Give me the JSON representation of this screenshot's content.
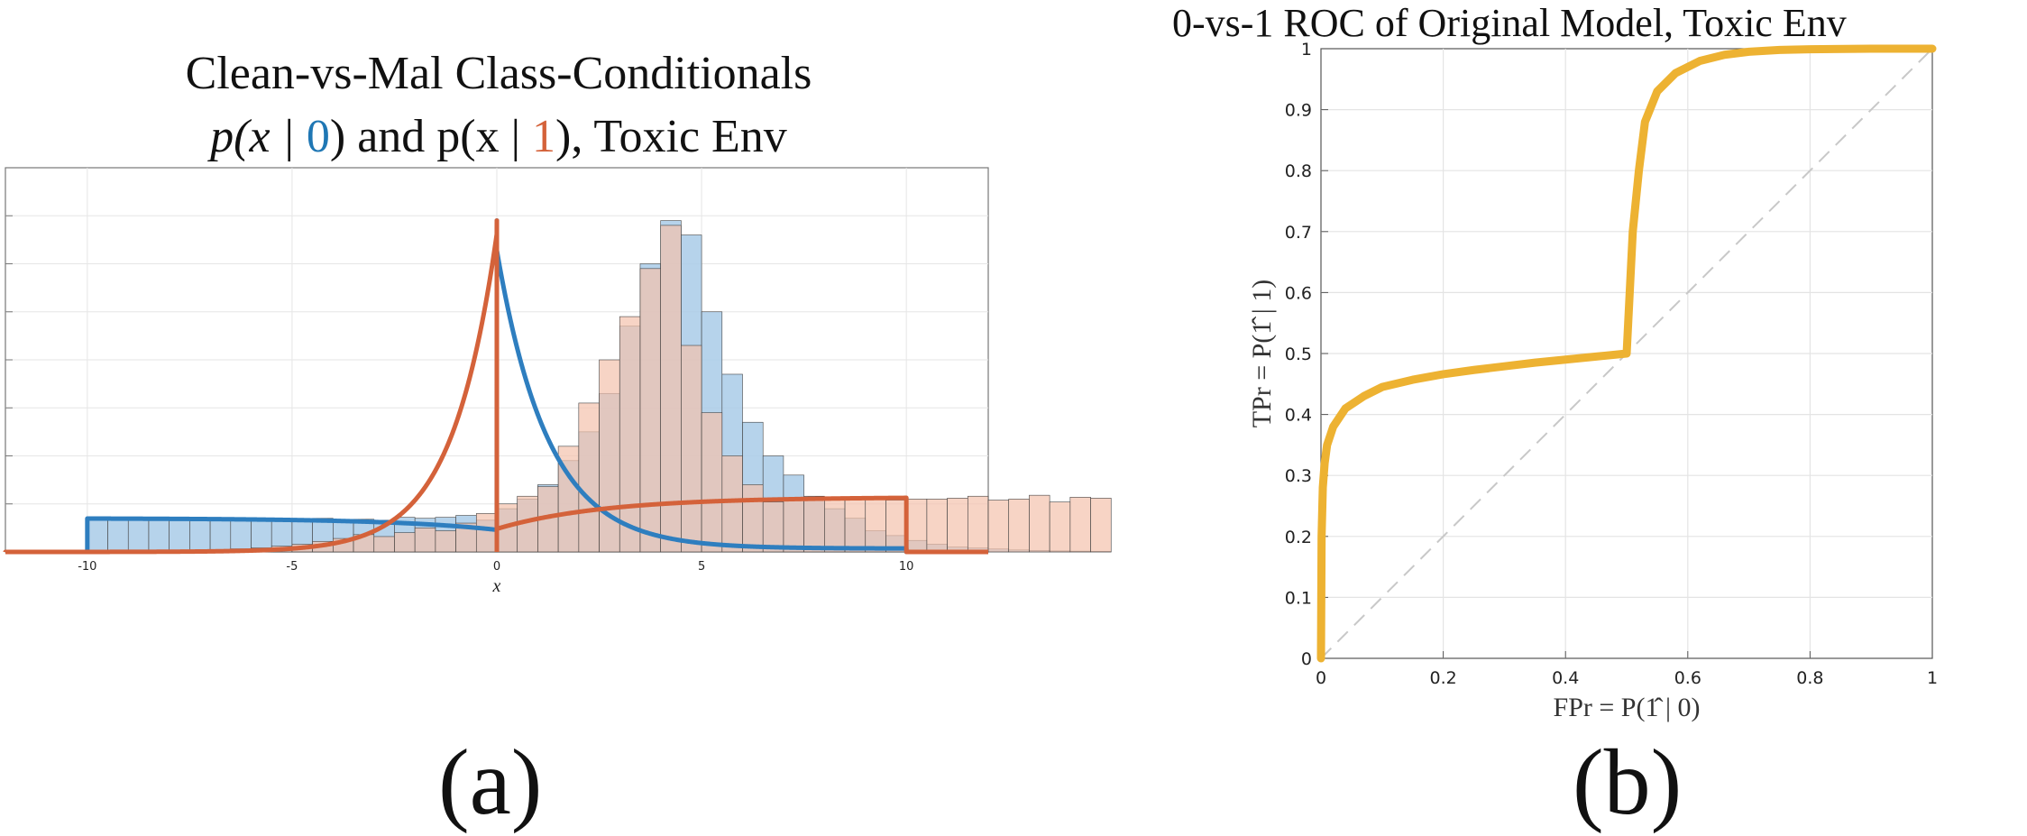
{
  "figure": {
    "caption_a": "(a)",
    "caption_b": "(b)"
  },
  "panel_a": {
    "title_line1": "Clean-vs-Mal Class-Conditionals",
    "title_line2": {
      "p1": "p(x | ",
      "class0": "0",
      "mid": ") and p(x | ",
      "class1": "1",
      "end": "), Toxic Env"
    },
    "xlabel": "x",
    "colors": {
      "class0": "#2e7ebf",
      "class1": "#d4623a",
      "hist0_fill": "#a9cbe8",
      "hist1_fill": "#f4c2ac"
    }
  },
  "panel_b": {
    "title": "0-vs-1 ROC of Original Model, Toxic Env",
    "xlabel": "FPr = P(1̂ | 0)",
    "ylabel": "TPr = P(1̂ | 1)",
    "colors": {
      "roc": "#edb232",
      "diag": "#c8c8c8"
    }
  },
  "chart_data": [
    {
      "type": "bar",
      "title": "Clean-vs-Mal Class-Conditionals p(x | 0) and p(x | 1), Toxic Env",
      "xlabel": "x",
      "xlim": [
        -12,
        12
      ],
      "ylim": [
        0,
        0.4
      ],
      "x_ticks": [
        -10,
        -5,
        0,
        5,
        10
      ],
      "grid": true,
      "bin_width": 0.5,
      "bin_start": -10,
      "series": [
        {
          "values": [
            0.034,
            0.035,
            0.034,
            0.035,
            0.034,
            0.035,
            0.034,
            0.033,
            0.035,
            0.034,
            0.034,
            0.035,
            0.034,
            0.034,
            0.033,
            0.036,
            0.035,
            0.036,
            0.038,
            0.033,
            0.045,
            0.055,
            0.07,
            0.095,
            0.125,
            0.165,
            0.235,
            0.3,
            0.345,
            0.33,
            0.25,
            0.185,
            0.135,
            0.1,
            0.08,
            0.058,
            0.045,
            0.035,
            0.022,
            0.017,
            0.012,
            0.008,
            0.005,
            0.004,
            0.003,
            0.002,
            0.0015,
            0.001,
            0.0008,
            0.0005
          ]
        },
        {
          "values": [
            0.0004,
            0.0005,
            0.0007,
            0.001,
            0.0013,
            0.0018,
            0.0024,
            0.0032,
            0.0042,
            0.006,
            0.008,
            0.011,
            0.014,
            0.018,
            0.016,
            0.02,
            0.025,
            0.022,
            0.03,
            0.04,
            0.05,
            0.058,
            0.068,
            0.11,
            0.155,
            0.2,
            0.245,
            0.295,
            0.34,
            0.215,
            0.145,
            0.1,
            0.07,
            0.052,
            0.054,
            0.055,
            0.056,
            0.057,
            0.055,
            0.054,
            0.055,
            0.055,
            0.056,
            0.058,
            0.054,
            0.055,
            0.059,
            0.052,
            0.057,
            0.056
          ]
        }
      ],
      "curves": [
        {
          "kind": "uniform(-10,10)+laplace(0,1)",
          "weight_uniform": 0.7
        },
        {
          "kind": "uniform(0,10)+laplace(0,1)+left tail"
        }
      ]
    },
    {
      "type": "line",
      "title": "0-vs-1 ROC of Original Model, Toxic Env",
      "xlabel": "FPr = P(1̂ | 0)",
      "ylabel": "TPr = P(1̂ | 1)",
      "xlim": [
        0,
        1
      ],
      "ylim": [
        0,
        1
      ],
      "x_ticks": [
        0,
        0.2,
        0.4,
        0.6,
        0.8,
        1
      ],
      "x_tick_labels": [
        "0",
        "0.2",
        "0.4",
        "0.6",
        "0.8",
        "1"
      ],
      "y_ticks": [
        0,
        0.1,
        0.2,
        0.3,
        0.4,
        0.5,
        0.6,
        0.7,
        0.8,
        0.9,
        1
      ],
      "y_tick_labels": [
        "0",
        "0.1",
        "0.2",
        "0.3",
        "0.4",
        "0.5",
        "0.6",
        "0.7",
        "0.8",
        "0.9",
        "1"
      ],
      "grid": true,
      "series": [
        {
          "x": [
            0,
            0.001,
            0.003,
            0.006,
            0.01,
            0.02,
            0.04,
            0.07,
            0.1,
            0.15,
            0.2,
            0.25,
            0.3,
            0.35,
            0.4,
            0.45,
            0.5,
            0.505,
            0.51,
            0.52,
            0.53,
            0.55,
            0.58,
            0.62,
            0.66,
            0.7,
            0.75,
            0.8,
            0.9,
            1.0
          ],
          "y": [
            0,
            0.2,
            0.28,
            0.32,
            0.35,
            0.38,
            0.41,
            0.43,
            0.445,
            0.457,
            0.466,
            0.473,
            0.479,
            0.485,
            0.49,
            0.495,
            0.5,
            0.6,
            0.7,
            0.8,
            0.88,
            0.93,
            0.96,
            0.98,
            0.99,
            0.995,
            0.998,
            0.999,
            1.0,
            1.0
          ]
        },
        {
          "x": [
            0,
            1
          ],
          "y": [
            0,
            1
          ]
        }
      ]
    }
  ]
}
